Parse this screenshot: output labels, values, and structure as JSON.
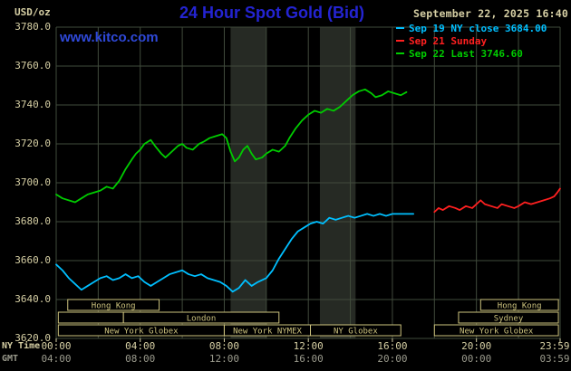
{
  "colors": {
    "background": "#000000",
    "title_blue": "#2424d2",
    "link_blue": "#2f49d9",
    "axis_text": "#d6cfa4",
    "gmt_text": "#9a9a8c",
    "grid": "#414b3c",
    "band": "#262a24",
    "session_outline": "#cdc37e",
    "series_sep19": "#00bfff",
    "series_sep21": "#ff2020",
    "series_sep22": "#00cc00"
  },
  "header": {
    "units_label": "USD/oz",
    "title": "24 Hour Spot Gold (Bid)",
    "datetime": "September 22, 2025 16:40",
    "watermark": "www.kitco.com"
  },
  "legend": {
    "items": [
      {
        "label": "Sep 19 NY close 3684.00",
        "color": "#00bfff"
      },
      {
        "label": "Sep 21 Sunday",
        "color": "#ff2020"
      },
      {
        "label": "Sep 22 Last 3746.60",
        "color": "#00cc00"
      }
    ]
  },
  "chart_data": {
    "type": "line",
    "title": "24 Hour Spot Gold (Bid)",
    "units": "USD/oz",
    "x_axis": {
      "caption_row1": "NY Time",
      "caption_row2": "GMT",
      "range_hours": [
        0,
        23.983
      ],
      "tick_hours": [
        0,
        4,
        8,
        12,
        16,
        20,
        23.983
      ],
      "tick_labels_ny": [
        "00:00",
        "04:00",
        "08:00",
        "12:00",
        "16:00",
        "20:00",
        "23:59"
      ],
      "tick_labels_gmt": [
        "04:00",
        "08:00",
        "12:00",
        "16:00",
        "20:00",
        "00:00",
        "03:59"
      ]
    },
    "y_axis": {
      "min": 3620,
      "max": 3780,
      "tick_step": 20,
      "tick_labels": [
        "3780.0",
        "3760.0",
        "3740.0",
        "3720.0",
        "3700.0",
        "3680.0",
        "3660.0",
        "3640.0",
        "3620.0"
      ]
    },
    "grid": {
      "v_step_hours": 2,
      "on": true
    },
    "shaded_bands_hours": [
      [
        8.3,
        10.0
      ],
      [
        12.55,
        14.25
      ]
    ],
    "series": [
      {
        "id": "sep19",
        "name": "Sep 19 NY close",
        "close": 3684.0,
        "color": "#00bfff",
        "points": [
          [
            0,
            3658
          ],
          [
            0.3,
            3655
          ],
          [
            0.6,
            3651
          ],
          [
            0.9,
            3648
          ],
          [
            1.2,
            3645
          ],
          [
            1.5,
            3647
          ],
          [
            1.8,
            3649
          ],
          [
            2.1,
            3651
          ],
          [
            2.4,
            3652
          ],
          [
            2.7,
            3650
          ],
          [
            3.0,
            3651
          ],
          [
            3.3,
            3653
          ],
          [
            3.6,
            3651
          ],
          [
            3.9,
            3652
          ],
          [
            4.2,
            3649
          ],
          [
            4.5,
            3647
          ],
          [
            4.8,
            3649
          ],
          [
            5.1,
            3651
          ],
          [
            5.4,
            3653
          ],
          [
            5.7,
            3654
          ],
          [
            6.0,
            3655
          ],
          [
            6.3,
            3653
          ],
          [
            6.6,
            3652
          ],
          [
            6.9,
            3653
          ],
          [
            7.2,
            3651
          ],
          [
            7.5,
            3650
          ],
          [
            7.8,
            3649
          ],
          [
            8.1,
            3647
          ],
          [
            8.4,
            3644
          ],
          [
            8.7,
            3646
          ],
          [
            9.0,
            3650
          ],
          [
            9.3,
            3647
          ],
          [
            9.6,
            3649
          ],
          [
            10.0,
            3651
          ],
          [
            10.3,
            3655
          ],
          [
            10.6,
            3661
          ],
          [
            10.9,
            3666
          ],
          [
            11.2,
            3671
          ],
          [
            11.5,
            3675
          ],
          [
            11.8,
            3677
          ],
          [
            12.1,
            3679
          ],
          [
            12.4,
            3680
          ],
          [
            12.7,
            3679
          ],
          [
            13.0,
            3682
          ],
          [
            13.3,
            3681
          ],
          [
            13.6,
            3682
          ],
          [
            13.9,
            3683
          ],
          [
            14.2,
            3682
          ],
          [
            14.5,
            3683
          ],
          [
            14.8,
            3684
          ],
          [
            15.1,
            3683
          ],
          [
            15.4,
            3684
          ],
          [
            15.7,
            3683
          ],
          [
            16.0,
            3684
          ],
          [
            16.4,
            3684
          ],
          [
            16.8,
            3684
          ],
          [
            17.0,
            3684
          ]
        ]
      },
      {
        "id": "sep21",
        "name": "Sep 21 Sunday",
        "color": "#ff2020",
        "points": [
          [
            18.0,
            3685
          ],
          [
            18.2,
            3687
          ],
          [
            18.4,
            3686
          ],
          [
            18.7,
            3688
          ],
          [
            19.0,
            3687
          ],
          [
            19.2,
            3686
          ],
          [
            19.5,
            3688
          ],
          [
            19.8,
            3687
          ],
          [
            20.0,
            3689
          ],
          [
            20.2,
            3691
          ],
          [
            20.4,
            3689
          ],
          [
            20.7,
            3688
          ],
          [
            21.0,
            3687
          ],
          [
            21.2,
            3689
          ],
          [
            21.5,
            3688
          ],
          [
            21.8,
            3687
          ],
          [
            22.0,
            3688
          ],
          [
            22.3,
            3690
          ],
          [
            22.6,
            3689
          ],
          [
            22.9,
            3690
          ],
          [
            23.2,
            3691
          ],
          [
            23.5,
            3692
          ],
          [
            23.7,
            3693
          ],
          [
            23.85,
            3695
          ],
          [
            23.98,
            3697
          ]
        ]
      },
      {
        "id": "sep22",
        "name": "Sep 22",
        "last": 3746.6,
        "color": "#00cc00",
        "points": [
          [
            0,
            3694
          ],
          [
            0.3,
            3692
          ],
          [
            0.6,
            3691
          ],
          [
            0.9,
            3690
          ],
          [
            1.2,
            3692
          ],
          [
            1.5,
            3694
          ],
          [
            1.8,
            3695
          ],
          [
            2.1,
            3696
          ],
          [
            2.4,
            3698
          ],
          [
            2.7,
            3697
          ],
          [
            3.0,
            3701
          ],
          [
            3.3,
            3707
          ],
          [
            3.6,
            3712
          ],
          [
            3.8,
            3715
          ],
          [
            4.0,
            3717
          ],
          [
            4.2,
            3720
          ],
          [
            4.5,
            3722
          ],
          [
            4.7,
            3719
          ],
          [
            5.0,
            3715
          ],
          [
            5.2,
            3713
          ],
          [
            5.5,
            3716
          ],
          [
            5.8,
            3719
          ],
          [
            6.0,
            3720
          ],
          [
            6.2,
            3718
          ],
          [
            6.5,
            3717
          ],
          [
            6.8,
            3720
          ],
          [
            7.0,
            3721
          ],
          [
            7.3,
            3723
          ],
          [
            7.6,
            3724
          ],
          [
            7.9,
            3725
          ],
          [
            8.1,
            3723
          ],
          [
            8.3,
            3716
          ],
          [
            8.5,
            3711
          ],
          [
            8.7,
            3713
          ],
          [
            8.9,
            3717
          ],
          [
            9.1,
            3719
          ],
          [
            9.3,
            3715
          ],
          [
            9.5,
            3712
          ],
          [
            9.8,
            3713
          ],
          [
            10.0,
            3715
          ],
          [
            10.3,
            3717
          ],
          [
            10.6,
            3716
          ],
          [
            10.9,
            3719
          ],
          [
            11.1,
            3723
          ],
          [
            11.4,
            3728
          ],
          [
            11.7,
            3732
          ],
          [
            12.0,
            3735
          ],
          [
            12.3,
            3737
          ],
          [
            12.6,
            3736
          ],
          [
            12.9,
            3738
          ],
          [
            13.2,
            3737
          ],
          [
            13.5,
            3739
          ],
          [
            13.8,
            3742
          ],
          [
            14.1,
            3745
          ],
          [
            14.4,
            3747
          ],
          [
            14.7,
            3748
          ],
          [
            15.0,
            3746
          ],
          [
            15.2,
            3744
          ],
          [
            15.5,
            3745
          ],
          [
            15.8,
            3747
          ],
          [
            16.1,
            3746
          ],
          [
            16.4,
            3745
          ],
          [
            16.67,
            3746.6
          ]
        ]
      }
    ],
    "sessions": {
      "color": "#cdc37e",
      "rows": [
        {
          "boxes": [
            {
              "label": "Hong Kong",
              "start": 0.55,
              "end": 4.9
            },
            {
              "label": "Hong Kong",
              "start": 20.2,
              "end": 23.9
            }
          ]
        },
        {
          "boxes": [
            {
              "label": "",
              "start": 0.1,
              "end": 3.2
            },
            {
              "label": "London",
              "start": 3.2,
              "end": 10.6
            },
            {
              "label": "Sydney",
              "start": 19.15,
              "end": 23.9
            }
          ]
        },
        {
          "boxes": [
            {
              "label": "New York Globex",
              "start": 0.1,
              "end": 8.0
            },
            {
              "label": "New York NYMEX",
              "start": 8.0,
              "end": 12.1
            },
            {
              "label": "NY Globex",
              "start": 12.1,
              "end": 16.4
            },
            {
              "label": "New York Globex",
              "start": 18.0,
              "end": 23.9
            }
          ]
        }
      ]
    }
  }
}
